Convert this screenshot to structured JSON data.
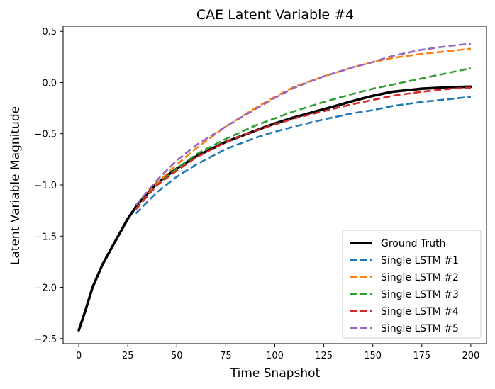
{
  "chart_data": {
    "type": "line",
    "title": "CAE Latent Variable #4",
    "xlabel": "Time Snapshot",
    "ylabel": "Latent Variable Magnitude",
    "xlim": [
      -8,
      208
    ],
    "ylim": [
      -2.55,
      0.55
    ],
    "xticks": [
      0,
      25,
      50,
      75,
      100,
      125,
      150,
      175,
      200
    ],
    "yticks": [
      -2.5,
      -2.0,
      -1.5,
      -1.0,
      -0.5,
      0.0,
      0.5
    ],
    "xtick_labels": [
      "0",
      "25",
      "50",
      "75",
      "100",
      "125",
      "150",
      "175",
      "200"
    ],
    "ytick_labels": [
      "−2.5",
      "−2.0",
      "−1.5",
      "−1.0",
      "−0.5",
      "0.0",
      "0.5"
    ],
    "legend_position": "lower-right",
    "series": [
      {
        "name": "Ground Truth",
        "color": "#000000",
        "style": "solid",
        "x": [
          0,
          3,
          7,
          12,
          18,
          25,
          30,
          40,
          50,
          60,
          75,
          90,
          100,
          110,
          125,
          140,
          150,
          160,
          175,
          190,
          200
        ],
        "y": [
          -2.42,
          -2.25,
          -2.0,
          -1.78,
          -1.57,
          -1.33,
          -1.19,
          -0.98,
          -0.84,
          -0.72,
          -0.58,
          -0.47,
          -0.4,
          -0.34,
          -0.26,
          -0.18,
          -0.13,
          -0.09,
          -0.06,
          -0.045,
          -0.04
        ]
      },
      {
        "name": "Single LSTM #1",
        "color": "#1f77b4",
        "style": "dashed",
        "x": [
          29,
          40,
          50,
          60,
          75,
          90,
          100,
          110,
          125,
          140,
          150,
          160,
          175,
          190,
          200
        ],
        "y": [
          -1.28,
          -1.07,
          -0.92,
          -0.8,
          -0.65,
          -0.54,
          -0.48,
          -0.43,
          -0.36,
          -0.3,
          -0.27,
          -0.23,
          -0.19,
          -0.16,
          -0.14
        ]
      },
      {
        "name": "Single LSTM #2",
        "color": "#ff7f0e",
        "style": "dashed",
        "x": [
          29,
          40,
          50,
          60,
          75,
          90,
          100,
          110,
          125,
          140,
          150,
          160,
          175,
          190,
          200
        ],
        "y": [
          -1.24,
          -0.98,
          -0.8,
          -0.64,
          -0.43,
          -0.25,
          -0.14,
          -0.04,
          0.06,
          0.15,
          0.2,
          0.24,
          0.28,
          0.31,
          0.33
        ]
      },
      {
        "name": "Single LSTM #3",
        "color": "#2ca02c",
        "style": "dashed",
        "x": [
          29,
          40,
          50,
          60,
          75,
          90,
          100,
          110,
          125,
          140,
          150,
          160,
          175,
          190,
          200
        ],
        "y": [
          -1.24,
          -1.0,
          -0.84,
          -0.7,
          -0.55,
          -0.42,
          -0.35,
          -0.28,
          -0.19,
          -0.11,
          -0.06,
          -0.02,
          0.04,
          0.1,
          0.14
        ]
      },
      {
        "name": "Single LSTM #4",
        "color": "#d62728",
        "style": "dashed",
        "x": [
          29,
          40,
          50,
          60,
          75,
          90,
          100,
          110,
          125,
          140,
          150,
          160,
          175,
          190,
          200
        ],
        "y": [
          -1.24,
          -1.0,
          -0.86,
          -0.73,
          -0.58,
          -0.47,
          -0.41,
          -0.35,
          -0.28,
          -0.21,
          -0.17,
          -0.13,
          -0.09,
          -0.06,
          -0.05
        ]
      },
      {
        "name": "Single LSTM #5",
        "color": "#9467bd",
        "style": "dashed",
        "x": [
          29,
          40,
          50,
          60,
          75,
          90,
          100,
          110,
          125,
          140,
          150,
          160,
          175,
          190,
          200
        ],
        "y": [
          -1.2,
          -0.95,
          -0.76,
          -0.61,
          -0.43,
          -0.26,
          -0.15,
          -0.05,
          0.06,
          0.15,
          0.2,
          0.26,
          0.32,
          0.36,
          0.38
        ]
      }
    ]
  }
}
